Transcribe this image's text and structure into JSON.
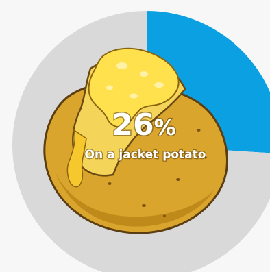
{
  "chart_data": {
    "type": "pie",
    "slices": [
      {
        "label": "On a jacket potato",
        "value": 26,
        "color": "#0aa0e2"
      },
      {
        "label": "",
        "value": 74,
        "color": "#d9d9d9"
      }
    ],
    "center_value": "26",
    "center_unit": "%",
    "center_caption": "On a jacket potato",
    "illustration": "jacket-potato-with-cheese"
  }
}
